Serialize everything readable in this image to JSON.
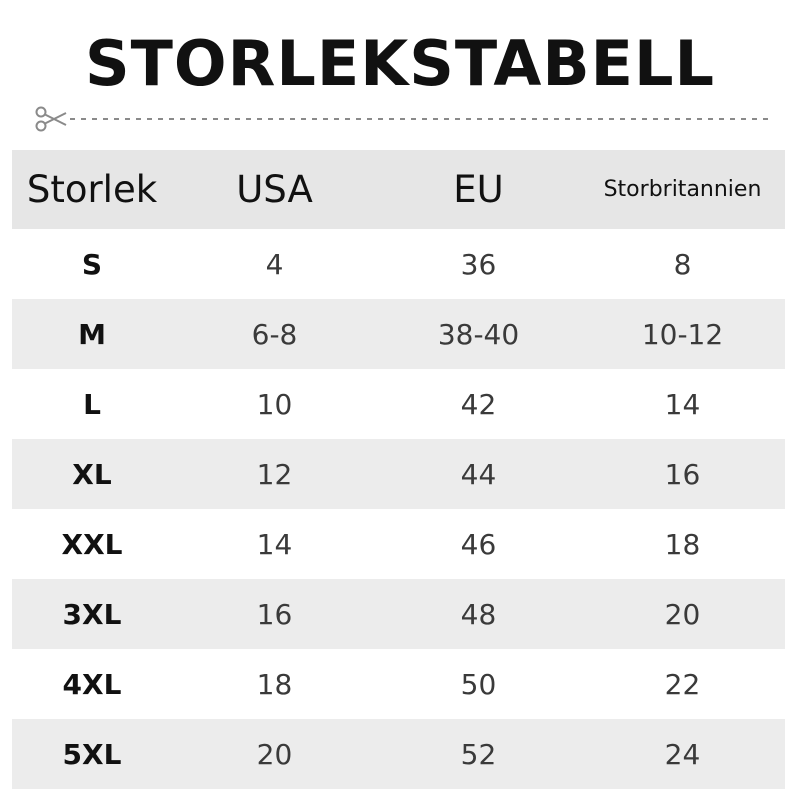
{
  "title": "STORLEKSTABELL",
  "icons": {
    "cut": "scissors-icon"
  },
  "colors": {
    "header_bg": "#e6e6e6",
    "row_shade": "#ececec",
    "text": "#111111"
  },
  "table": {
    "headers": [
      "Storlek",
      "USA",
      "EU",
      "Storbritannien"
    ],
    "rows": [
      [
        "S",
        "4",
        "36",
        "8"
      ],
      [
        "M",
        "6-8",
        "38-40",
        "10-12"
      ],
      [
        "L",
        "10",
        "42",
        "14"
      ],
      [
        "XL",
        "12",
        "44",
        "16"
      ],
      [
        "XXL",
        "14",
        "46",
        "18"
      ],
      [
        "3XL",
        "16",
        "48",
        "20"
      ],
      [
        "4XL",
        "18",
        "50",
        "22"
      ],
      [
        "5XL",
        "20",
        "52",
        "24"
      ]
    ]
  }
}
